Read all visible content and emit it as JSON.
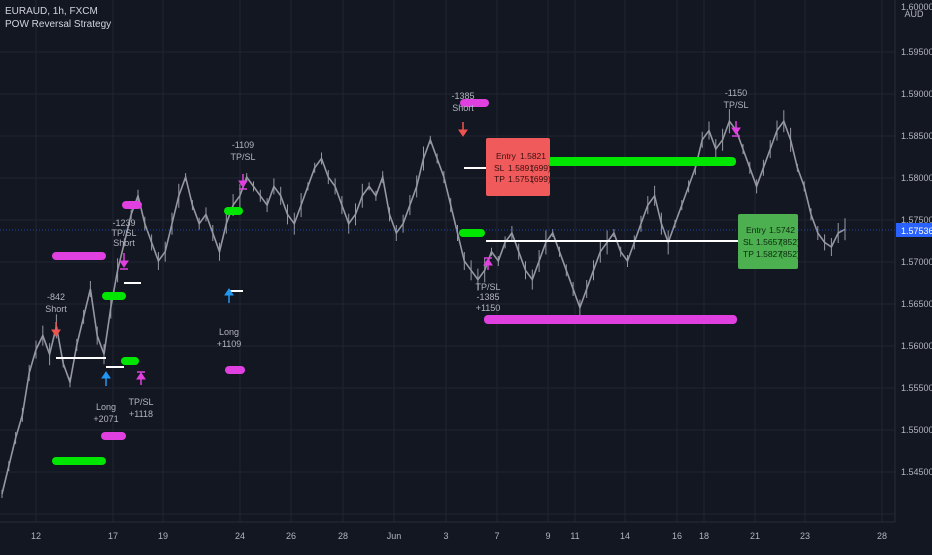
{
  "header": {
    "symbol": "EURAUD, 1h, FXCM",
    "strategy": "POW Reversal Strategy"
  },
  "price_axis": {
    "currency": "AUD",
    "labels": [
      "1.60000",
      "1.59500",
      "1.59000",
      "1.58500",
      "1.58000",
      "1.57500",
      "1.57000",
      "1.56500",
      "1.56000",
      "1.55500",
      "1.55000",
      "1.54500"
    ],
    "current_price": "1.57536"
  },
  "time_axis": {
    "labels": [
      "12",
      "17",
      "19",
      "24",
      "26",
      "28",
      "Jun",
      "3",
      "7",
      "9",
      "11",
      "14",
      "16",
      "18",
      "21",
      "23",
      "28"
    ]
  },
  "colors": {
    "background": "#131722",
    "candles": "#9598a1",
    "green_zone": "#00e600",
    "magenta_zone": "#e040e0",
    "long_arrow": "#2196f3",
    "short_arrow": "#ef5350",
    "short_box": "#f05a5a",
    "long_box": "#4caf50"
  },
  "annotations": {
    "a1_value": "-842",
    "a1_side": "Short",
    "a2_value": "-1239",
    "a2_mid": "TP/SL",
    "a2_side": "Short",
    "a3_side": "Long",
    "a3_value": "+2071",
    "a4_mid": "TP/SL",
    "a4_value": "+1118",
    "a5_value": "-1109",
    "a5_mid": "TP/SL",
    "a6_side": "Long",
    "a6_value": "+1109",
    "a7_value": "-1385",
    "a7_side": "Short",
    "a8_mid": "TP/SL",
    "a8_value1": "-1385",
    "a8_value2": "+1150",
    "a9_value": "-1150",
    "a9_mid": "TP/SL"
  },
  "short_order": {
    "entry_label": "Entry",
    "entry_value": "1.5821",
    "sl_label": "SL",
    "sl_value": "1.5891",
    "sl_count": "(699)",
    "tp_label": "TP",
    "tp_value": "1.5751",
    "tp_count": "(699)"
  },
  "long_order": {
    "entry_label": "Entry",
    "entry_value": "1.5742",
    "sl_label": "SL",
    "sl_value": "1.5657",
    "sl_count": "(852)",
    "tp_label": "TP",
    "tp_value": "1.5827",
    "tp_count": "(852)"
  },
  "chart_data": {
    "type": "line",
    "title": "",
    "ylim": [
      1.544,
      1.6
    ],
    "x_ticks": [
      "12",
      "17",
      "19",
      "24",
      "26",
      "28",
      "Jun",
      "3",
      "7",
      "9",
      "11",
      "14",
      "16",
      "18",
      "21",
      "23",
      "28"
    ],
    "series": [
      {
        "values": [
          1.547,
          1.55,
          1.553,
          1.5555,
          1.56,
          1.5625,
          1.564,
          1.562,
          1.565,
          1.561,
          1.559,
          1.563,
          1.566,
          1.569,
          1.564,
          1.562,
          1.567,
          1.571,
          1.574,
          1.577,
          1.579,
          1.576,
          1.574,
          1.572,
          1.573,
          1.576,
          1.579,
          1.581,
          1.578,
          1.576,
          1.577,
          1.575,
          1.573,
          1.576,
          1.578,
          1.579,
          1.581,
          1.58,
          1.579,
          1.578,
          1.58,
          1.579,
          1.577,
          1.576,
          1.578,
          1.58,
          1.582,
          1.583,
          1.581,
          1.58,
          1.578,
          1.576,
          1.577,
          1.579,
          1.58,
          1.579,
          1.581,
          1.577,
          1.575,
          1.576,
          1.578,
          1.58,
          1.583,
          1.585,
          1.583,
          1.581,
          1.578,
          1.575,
          1.572,
          1.571,
          1.57,
          1.571,
          1.573,
          1.572,
          1.574,
          1.575,
          1.573,
          1.571,
          1.57,
          1.572,
          1.574,
          1.575,
          1.573,
          1.571,
          1.569,
          1.567,
          1.569,
          1.571,
          1.573,
          1.574,
          1.575,
          1.573,
          1.572,
          1.574,
          1.576,
          1.578,
          1.579,
          1.576,
          1.574,
          1.576,
          1.578,
          1.58,
          1.582,
          1.585,
          1.586,
          1.584,
          1.585,
          1.587,
          1.586,
          1.584,
          1.582,
          1.58,
          1.582,
          1.584,
          1.586,
          1.587,
          1.585,
          1.582,
          1.58,
          1.577,
          1.575,
          1.574,
          1.5735,
          1.575,
          1.5754
        ]
      }
    ]
  }
}
